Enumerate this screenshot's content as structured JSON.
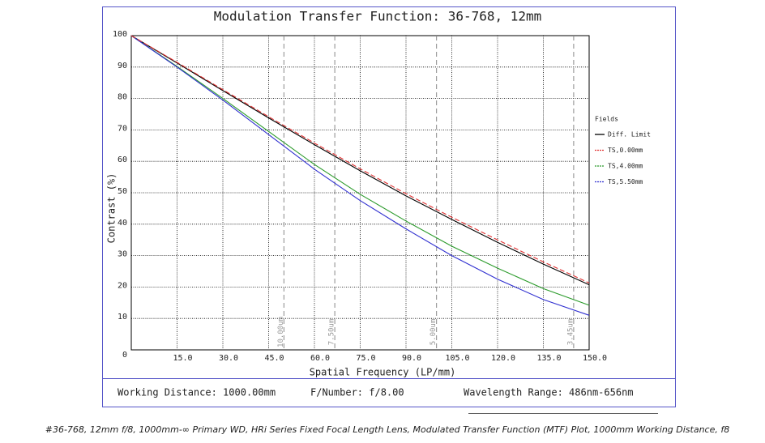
{
  "chart_data": {
    "type": "line",
    "title": "Modulation Transfer Function: 36-768, 12mm",
    "x_label": "Spatial Frequency (LP/mm)",
    "y_label": "Contrast (%)",
    "x": [
      0,
      15,
      30,
      45,
      60,
      75,
      90,
      105,
      120,
      135,
      150
    ],
    "series": [
      {
        "name": "Diff. Limit",
        "color": "#000000",
        "values": [
          100,
          91.3,
          82.5,
          73.8,
          65.3,
          57,
          49,
          41.5,
          34.2,
          27.3,
          20.7
        ]
      },
      {
        "name": "TS,0.00mm",
        "color": "#e03030",
        "values": [
          100,
          91.5,
          82.8,
          74.2,
          65.8,
          57.6,
          49.7,
          42.2,
          35,
          28,
          21.3
        ]
      },
      {
        "name": "TS,4.00mm",
        "color": "#2a9a2a",
        "values": [
          100,
          90.2,
          80,
          69.5,
          59,
          49.5,
          41,
          33,
          26,
          19.5,
          14.2
        ]
      },
      {
        "name": "TS,5.50mm",
        "color": "#3030d0",
        "values": [
          100,
          90,
          79.5,
          68.5,
          57.5,
          47.5,
          38.5,
          30,
          22.5,
          16,
          11
        ]
      }
    ],
    "xlim": [
      0,
      150
    ],
    "ylim": [
      0,
      100
    ],
    "xticks": [
      {
        "value": 15,
        "label": "15.0"
      },
      {
        "value": 30,
        "label": "30.0"
      },
      {
        "value": 45,
        "label": "45.0"
      },
      {
        "value": 60,
        "label": "60.0"
      },
      {
        "value": 75,
        "label": "75.0"
      },
      {
        "value": 90,
        "label": "90.0"
      },
      {
        "value": 105,
        "label": "105.0"
      },
      {
        "value": 120,
        "label": "120.0"
      },
      {
        "value": 135,
        "label": "135.0"
      },
      {
        "value": 150,
        "label": "150.0"
      }
    ],
    "yticks": [
      0,
      10,
      20,
      30,
      40,
      50,
      60,
      70,
      80,
      90,
      100
    ],
    "grid": true,
    "legend_title": "Fields",
    "legend": "right",
    "markers": [
      {
        "x": 50,
        "label": "10.00um"
      },
      {
        "x": 66.67,
        "label": "7.50um"
      },
      {
        "x": 100,
        "label": "5.00um"
      },
      {
        "x": 144.93,
        "label": "3.45um"
      }
    ]
  },
  "footer": [
    "Working Distance: 1000.00mm",
    "F/Number: f/8.00",
    "Wavelength Range: 486nm-656nm"
  ],
  "caption": "#36-768, 12mm f/8, 1000mm-∞ Primary WD, HRi Series Fixed Focal Length Lens, Modulated Transfer Function (MTF) Plot, 1000mm Working Distance, f8"
}
